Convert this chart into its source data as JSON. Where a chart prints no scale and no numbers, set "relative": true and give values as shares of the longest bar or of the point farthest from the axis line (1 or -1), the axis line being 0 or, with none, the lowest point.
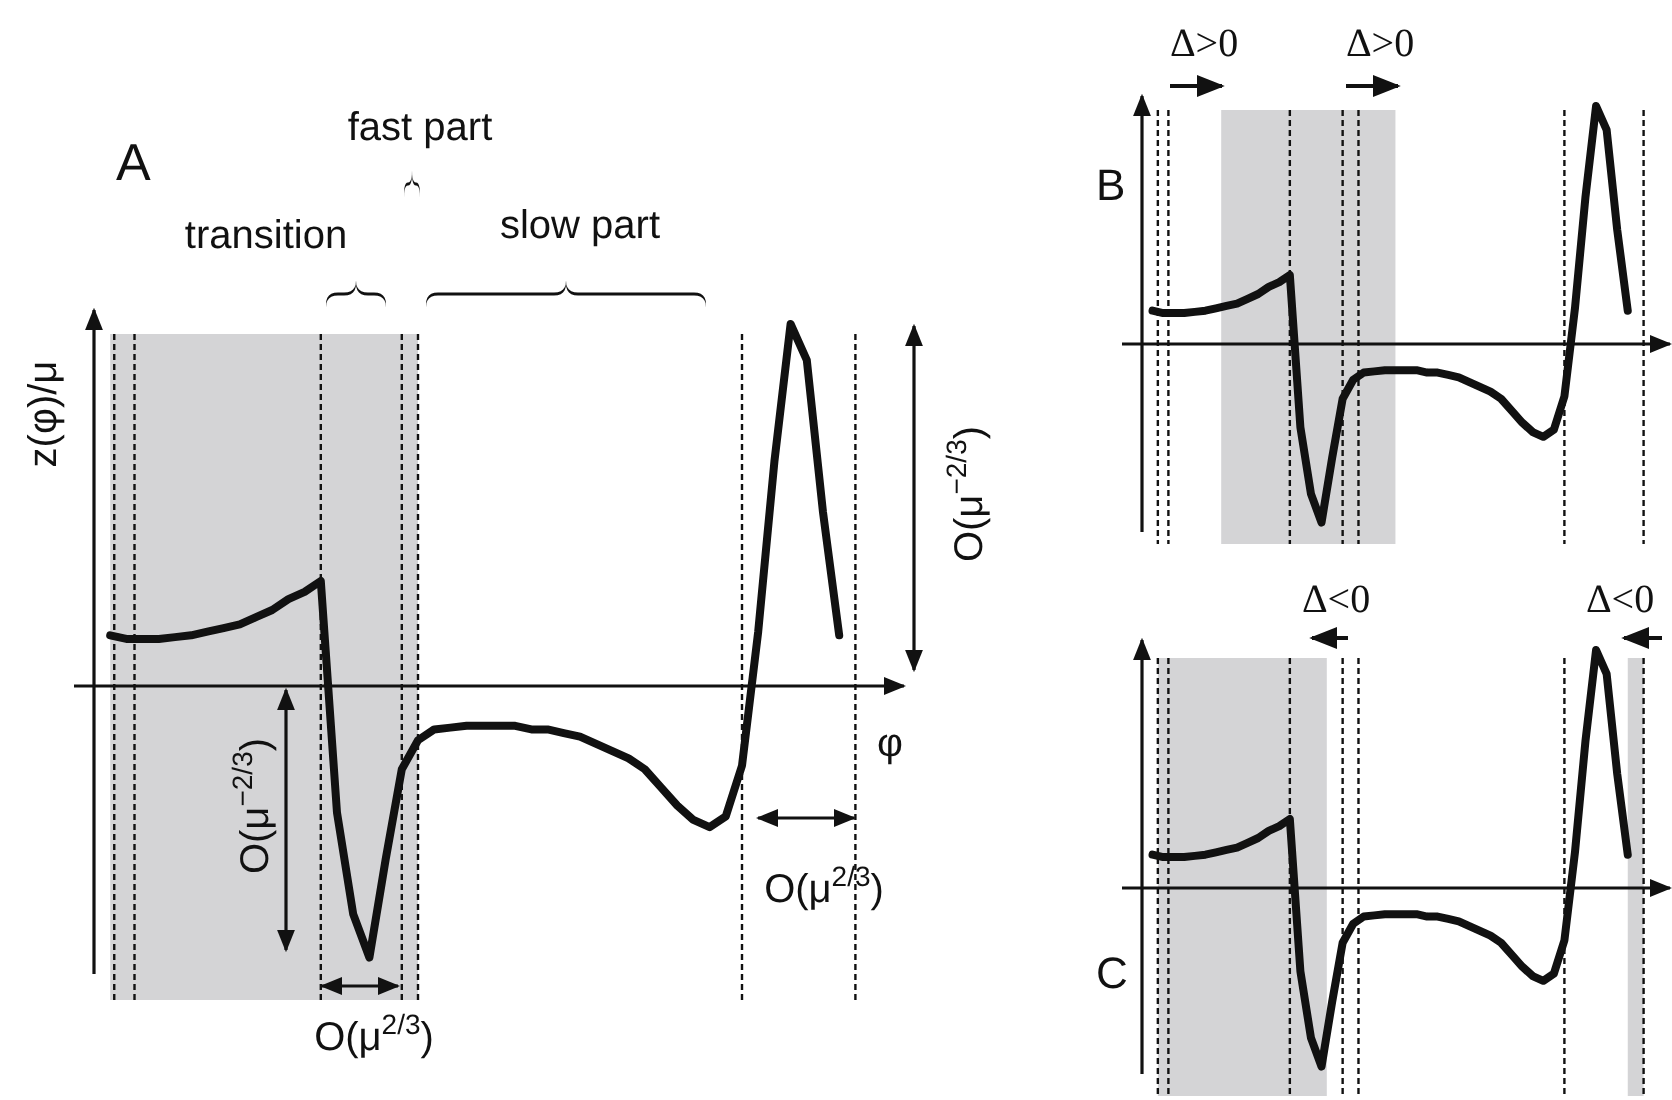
{
  "chart_data": [
    {
      "type": "line",
      "relative": true,
      "title": "A",
      "xlabel": "φ",
      "ylabel": "z(φ)/μ",
      "tick_labels": false,
      "line_style": "solid",
      "grid": "x",
      "categories": [
        null,
        null,
        null,
        null,
        null,
        null,
        null,
        null,
        null,
        null,
        null,
        null,
        null,
        null,
        null,
        null,
        null,
        null,
        null,
        null,
        null,
        null,
        null,
        null,
        null,
        null,
        null,
        null,
        null,
        null,
        null,
        null,
        null,
        null,
        null,
        null,
        null,
        null,
        null,
        null,
        null,
        null,
        null,
        null,
        null,
        null
      ],
      "series": [
        {
          "color": "#111111",
          "values": [
            0.14,
            0.13,
            0.13,
            0.13,
            0.135,
            0.14,
            0.15,
            0.16,
            0.17,
            0.19,
            0.21,
            0.24,
            0.26,
            0.29,
            -0.35,
            -0.63,
            -0.75,
            -0.48,
            -0.23,
            -0.15,
            -0.12,
            -0.115,
            -0.11,
            -0.11,
            -0.11,
            -0.11,
            -0.12,
            -0.12,
            -0.13,
            -0.14,
            -0.16,
            -0.18,
            -0.2,
            -0.23,
            -0.28,
            -0.33,
            -0.37,
            -0.39,
            -0.36,
            -0.22,
            0.15,
            0.62,
            1,
            0.9,
            0.48,
            0.14
          ]
        }
      ],
      "annotations": [
        "fast part",
        "transition",
        "slow part",
        "O(μ$^{−2/3}$)",
        "O(μ$^{−2/3}$)",
        "O(μ$^{2/3}$)",
        "O(μ$^{2/3}$)"
      ]
    },
    {
      "type": "line",
      "relative": true,
      "title": "B",
      "tick_labels": false,
      "line_style": "solid",
      "grid": "x",
      "categories": [
        null,
        null,
        null,
        null,
        null,
        null,
        null,
        null,
        null,
        null,
        null,
        null,
        null,
        null,
        null,
        null,
        null,
        null,
        null,
        null,
        null,
        null,
        null,
        null,
        null,
        null,
        null,
        null,
        null,
        null,
        null,
        null,
        null,
        null,
        null,
        null,
        null,
        null,
        null,
        null,
        null,
        null,
        null,
        null,
        null,
        null
      ],
      "series": [
        {
          "color": "#111111",
          "values": [
            0.14,
            0.13,
            0.13,
            0.13,
            0.135,
            0.14,
            0.15,
            0.16,
            0.17,
            0.19,
            0.21,
            0.24,
            0.26,
            0.29,
            -0.35,
            -0.63,
            -0.75,
            -0.48,
            -0.23,
            -0.15,
            -0.12,
            -0.115,
            -0.11,
            -0.11,
            -0.11,
            -0.11,
            -0.12,
            -0.12,
            -0.13,
            -0.14,
            -0.16,
            -0.18,
            -0.2,
            -0.23,
            -0.28,
            -0.33,
            -0.37,
            -0.39,
            -0.36,
            -0.22,
            0.15,
            0.62,
            1,
            0.9,
            0.48,
            0.14
          ]
        }
      ],
      "annotations": [
        "Δ>0",
        "Δ>0"
      ]
    },
    {
      "type": "line",
      "relative": true,
      "title": "C",
      "tick_labels": false,
      "line_style": "solid",
      "grid": "x",
      "categories": [
        null,
        null,
        null,
        null,
        null,
        null,
        null,
        null,
        null,
        null,
        null,
        null,
        null,
        null,
        null,
        null,
        null,
        null,
        null,
        null,
        null,
        null,
        null,
        null,
        null,
        null,
        null,
        null,
        null,
        null,
        null,
        null,
        null,
        null,
        null,
        null,
        null,
        null,
        null,
        null,
        null,
        null,
        null,
        null,
        null,
        null
      ],
      "series": [
        {
          "color": "#111111",
          "values": [
            0.14,
            0.13,
            0.13,
            0.13,
            0.135,
            0.14,
            0.15,
            0.16,
            0.17,
            0.19,
            0.21,
            0.24,
            0.26,
            0.29,
            -0.35,
            -0.63,
            -0.75,
            -0.48,
            -0.23,
            -0.15,
            -0.12,
            -0.115,
            -0.11,
            -0.11,
            -0.11,
            -0.11,
            -0.12,
            -0.12,
            -0.13,
            -0.14,
            -0.16,
            -0.18,
            -0.2,
            -0.23,
            -0.28,
            -0.33,
            -0.37,
            -0.39,
            -0.36,
            -0.22,
            0.15,
            0.62,
            1,
            0.9,
            0.48,
            0.14
          ]
        }
      ],
      "annotations": [
        "Δ<0",
        "Δ<0"
      ]
    }
  ]
}
